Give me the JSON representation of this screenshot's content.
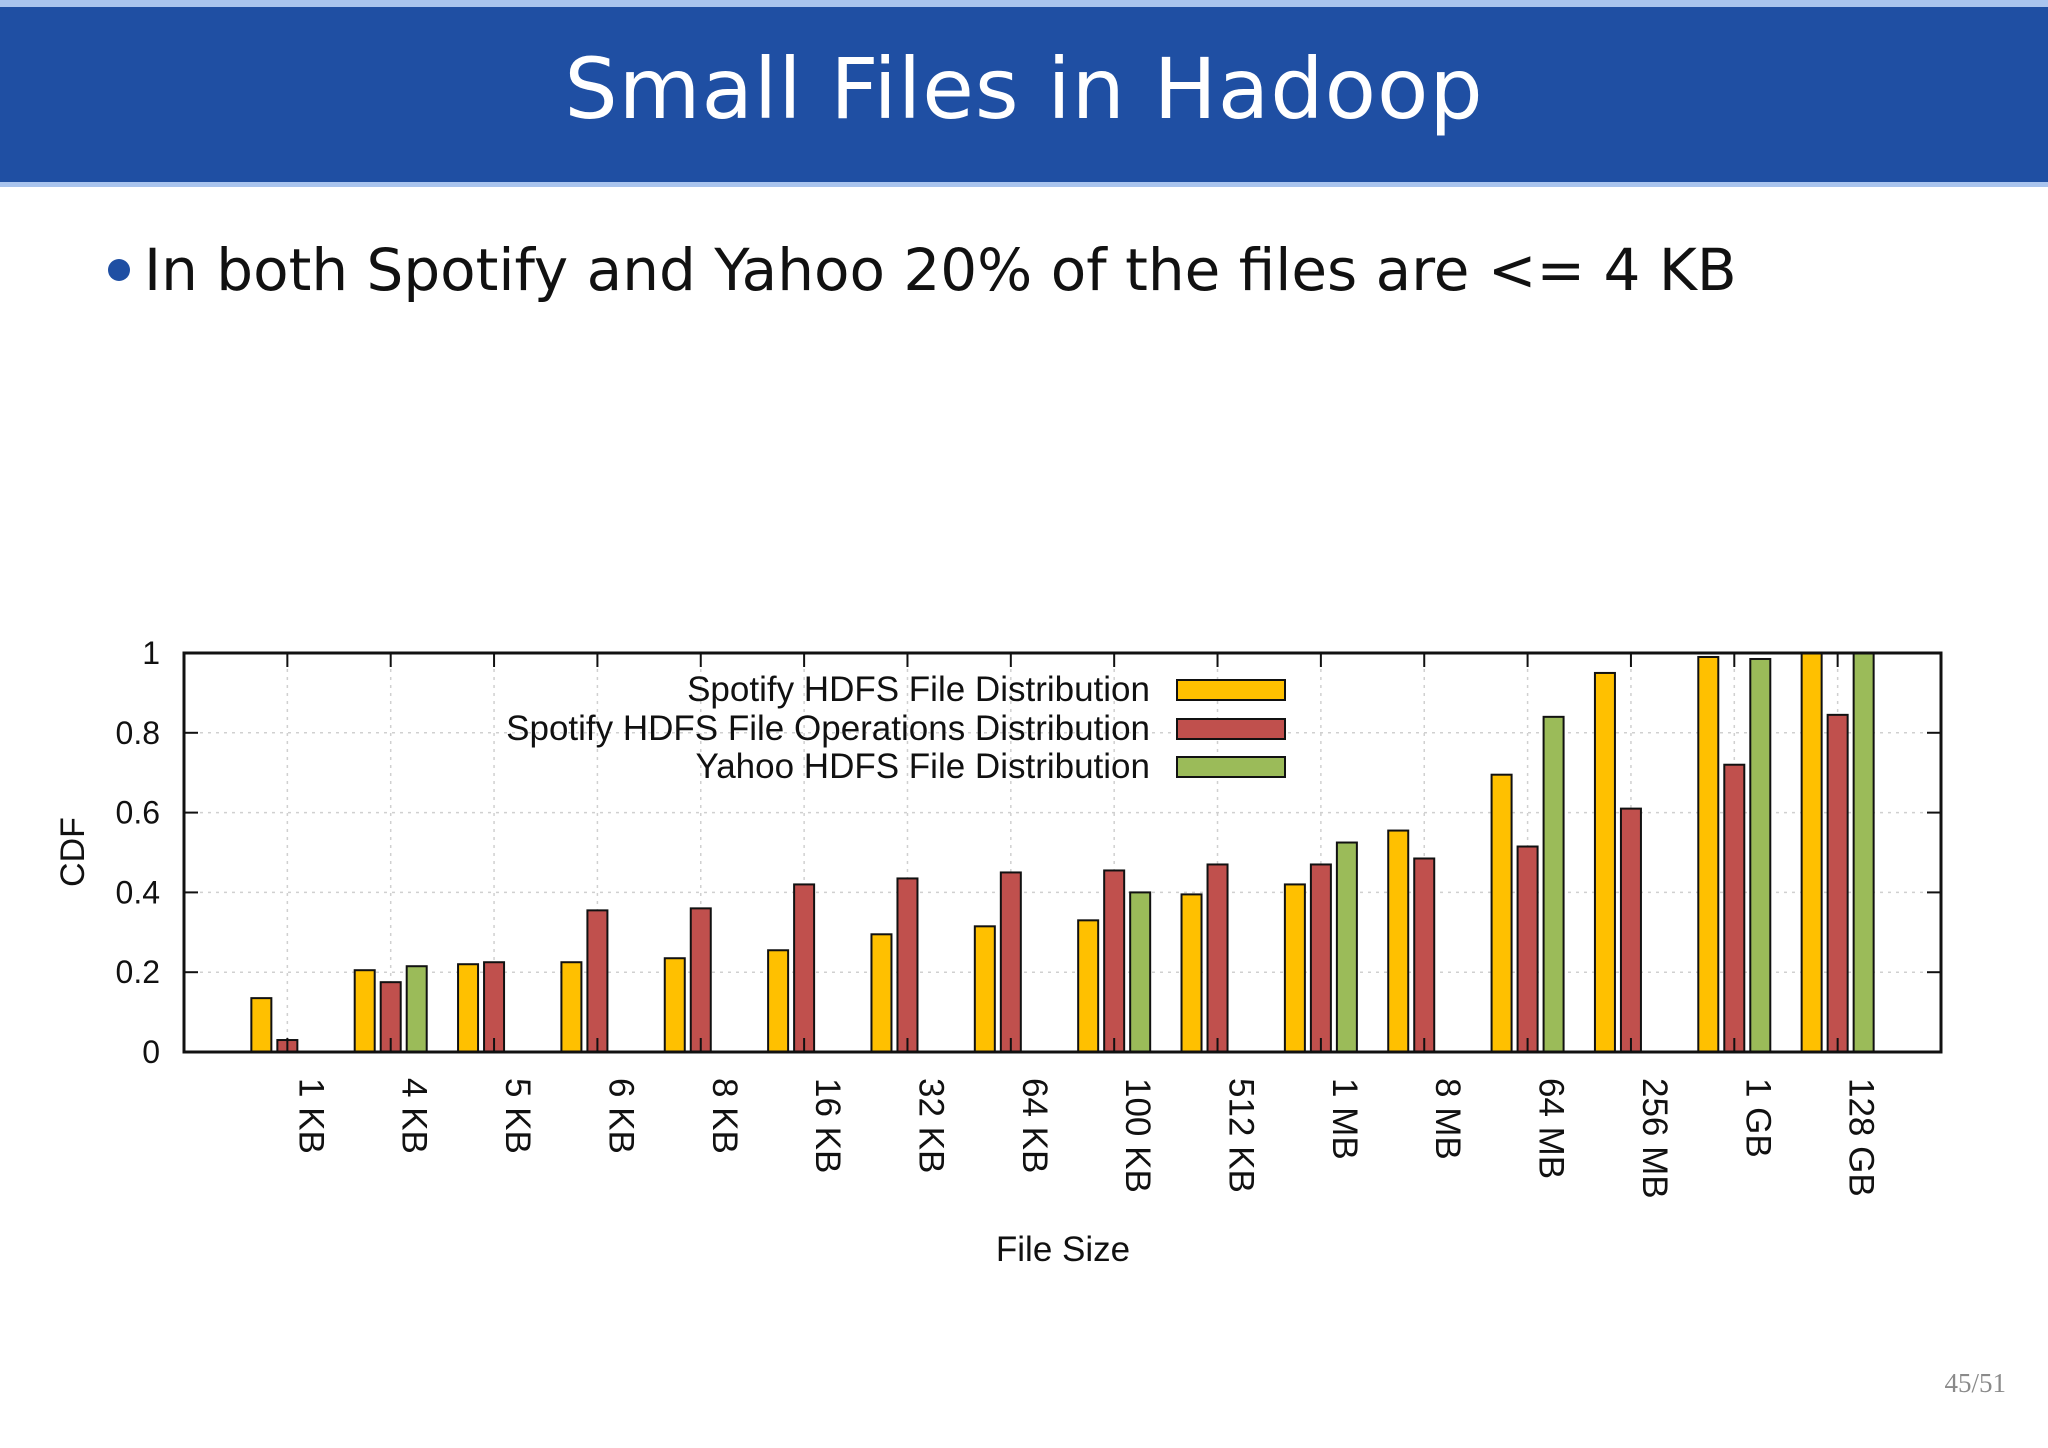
{
  "slide": {
    "title": "Small Files in Hadoop",
    "bullet": "In both Spotify and Yahoo 20% of the files are <= 4 KB",
    "page_number": "45/51",
    "colors": {
      "title_bar": "#1f4fa3",
      "accent": "#a9c4ee"
    }
  },
  "chart_data": {
    "type": "bar",
    "title": "",
    "xlabel": "File Size",
    "ylabel": "CDF",
    "ylim": [
      0,
      1
    ],
    "yticks": [
      "0",
      "0.2",
      "0.4",
      "0.6",
      "0.8",
      "1"
    ],
    "grid": true,
    "legend_position": "top-center",
    "categories": [
      "1 KB",
      "4 KB",
      "5 KB",
      "6 KB",
      "8 KB",
      "16 KB",
      "32 KB",
      "64 KB",
      "100 KB",
      "512 KB",
      "1 MB",
      "8 MB",
      "64 MB",
      "256 MB",
      "1 GB",
      "128 GB"
    ],
    "series": [
      {
        "name": "Spotify HDFS File Distribution",
        "color": "#ffc000",
        "values": [
          0.135,
          0.205,
          0.22,
          0.225,
          0.235,
          0.255,
          0.295,
          0.315,
          0.33,
          0.395,
          0.42,
          0.555,
          0.695,
          0.95,
          0.99,
          1.0
        ]
      },
      {
        "name": "Spotify HDFS File Operations Distribution",
        "color": "#c0504d",
        "values": [
          0.03,
          0.175,
          0.225,
          0.355,
          0.36,
          0.42,
          0.435,
          0.45,
          0.455,
          0.47,
          0.47,
          0.485,
          0.515,
          0.61,
          0.72,
          0.845
        ]
      },
      {
        "name": "Yahoo HDFS File Distribution",
        "color": "#9bbb59",
        "values": [
          null,
          0.215,
          null,
          null,
          null,
          null,
          null,
          null,
          0.4,
          null,
          0.525,
          null,
          0.84,
          null,
          0.985,
          1.0
        ]
      }
    ]
  }
}
